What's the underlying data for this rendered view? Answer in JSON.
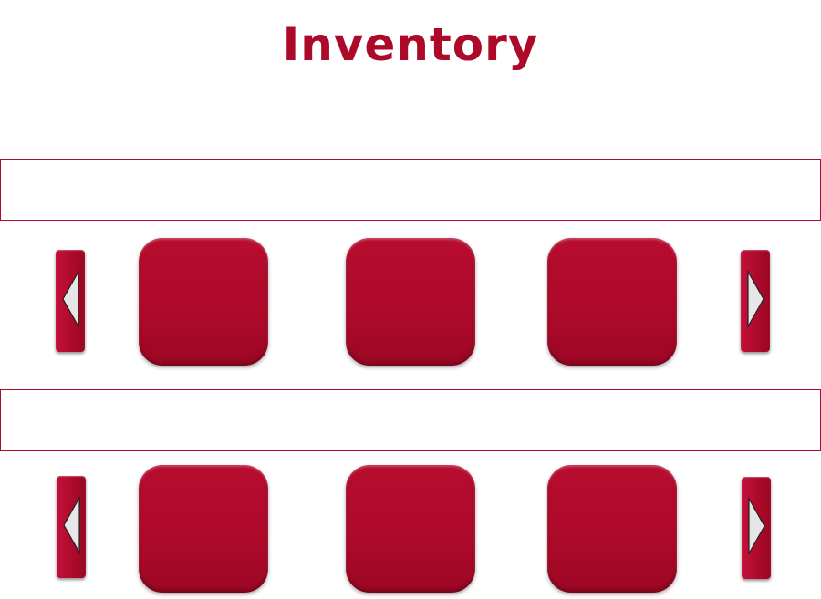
{
  "title": "Inventory",
  "colors": {
    "accent": "#ad0a2a",
    "background": "#ffffff",
    "arrow_fill": "#e6e6e6"
  },
  "rows": [
    {
      "banner_text": "",
      "prev_icon": "triangle-left-icon",
      "next_icon": "triangle-right-icon",
      "slots": [
        "",
        "",
        ""
      ]
    },
    {
      "banner_text": "",
      "prev_icon": "triangle-left-icon",
      "next_icon": "triangle-right-icon",
      "slots": [
        "",
        "",
        ""
      ]
    }
  ]
}
